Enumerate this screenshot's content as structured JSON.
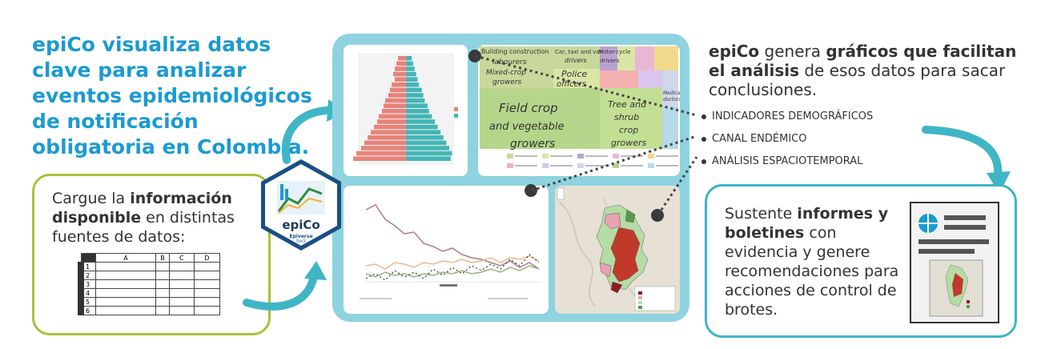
{
  "intro": {
    "brand": "epiCo",
    "rest": " visualiza datos clave para analizar eventos epidemiológicos de notificación obligatoria en Colombia."
  },
  "upload": {
    "prefix": "Cargue la ",
    "bold": "información disponible",
    "suffix": " en distintas fuentes de datos:",
    "columns": [
      "A",
      "B",
      "C",
      "D"
    ],
    "rows": [
      "1",
      "2",
      "3",
      "4",
      "5",
      "6"
    ]
  },
  "logo": {
    "name": "epiCo",
    "org": "Epiverse",
    "sub": "TRACE"
  },
  "charts": {
    "pyramid_legend_title": "sexo",
    "pyramid_legend": [
      "F",
      "M"
    ],
    "treemap_labels": [
      "Building construction",
      "labourers",
      "Mixed-crop",
      "growers",
      "Car, taxi and van",
      "drivers",
      "Police",
      "officers",
      "Motor-cycle",
      "drivers",
      "Field crop",
      "and vegetable",
      "growers",
      "Tree and",
      "shrub",
      "crop",
      "growers",
      "Medical",
      "doctors"
    ]
  },
  "description": {
    "brand": "epiCo",
    "part1": " genera ",
    "bold1": "gráficos que facilitan el análisis",
    "part2": " de esos datos para sacar conclusiones."
  },
  "bullets": [
    "INDICADORES DEMOGRÁFICOS",
    "CANAL ENDÉMICO",
    "ANÁLISIS ESPACIOTEMPORAL"
  ],
  "reports": {
    "prefix": "Sustente ",
    "bold": "informes y boletines",
    "suffix": " con evidencia y genere recomendaciones para acciones de control de brotes."
  },
  "colors": {
    "brand_blue": "#1b9ad2",
    "panel": "#8ed3df",
    "green_border": "#a8c23a",
    "teal_border": "#3fb5c6"
  }
}
